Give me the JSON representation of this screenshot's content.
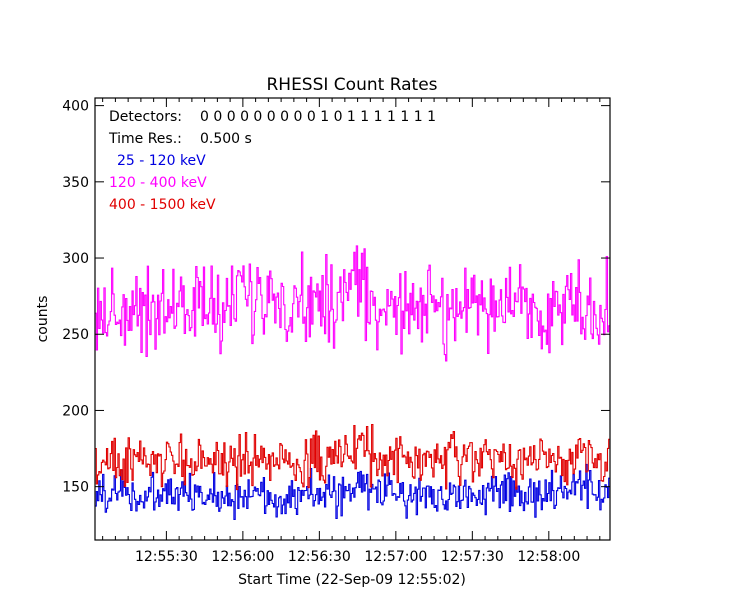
{
  "chart_data": {
    "type": "line",
    "title": "RHESSI Count Rates",
    "xlabel": "Start Time (22-Sep-09 12:55:02)",
    "ylabel": "counts",
    "ylim": [
      115,
      405
    ],
    "xlim_seconds_after_start": [
      0,
      202
    ],
    "yticks": [
      150,
      200,
      250,
      300,
      350,
      400
    ],
    "xtick_labels": [
      "12:55:30",
      "12:56:00",
      "12:56:30",
      "12:57:00",
      "12:57:30",
      "12:58:00"
    ],
    "grid": false,
    "legend_placement": "top-left",
    "annotations": [
      {
        "label": "Detectors:",
        "value": "0 0 0 0 0 0 0 0 0 1 0 1 1 1 1 1 1 1"
      },
      {
        "label": "Time Res.:",
        "value": "0.500 s"
      }
    ],
    "series": [
      {
        "name": "25 - 120 keV",
        "color": "#0000e0",
        "anchors": [
          [
            0,
            144
          ],
          [
            10,
            148
          ],
          [
            20,
            142
          ],
          [
            30,
            146
          ],
          [
            40,
            143
          ],
          [
            50,
            145
          ],
          [
            60,
            144
          ],
          [
            70,
            144
          ],
          [
            80,
            145
          ],
          [
            90,
            144
          ],
          [
            100,
            146
          ],
          [
            105,
            150
          ],
          [
            110,
            147
          ],
          [
            120,
            145
          ],
          [
            130,
            146
          ],
          [
            140,
            144
          ],
          [
            150,
            144
          ],
          [
            160,
            147
          ],
          [
            170,
            144
          ],
          [
            180,
            146
          ],
          [
            190,
            147
          ],
          [
            202,
            147
          ]
        ],
        "amplitude": 12
      },
      {
        "name": "120 - 400 keV",
        "color": "#ff00ff",
        "anchors": [
          [
            0,
            262
          ],
          [
            10,
            266
          ],
          [
            20,
            268
          ],
          [
            30,
            267
          ],
          [
            40,
            270
          ],
          [
            50,
            268
          ],
          [
            60,
            271
          ],
          [
            70,
            273
          ],
          [
            80,
            272
          ],
          [
            90,
            271
          ],
          [
            96,
            276
          ],
          [
            100,
            288
          ],
          [
            104,
            272
          ],
          [
            110,
            270
          ],
          [
            120,
            270
          ],
          [
            130,
            268
          ],
          [
            140,
            265
          ],
          [
            150,
            268
          ],
          [
            160,
            270
          ],
          [
            170,
            268
          ],
          [
            180,
            266
          ],
          [
            190,
            268
          ],
          [
            202,
            265
          ]
        ],
        "amplitude": 24
      },
      {
        "name": "400 - 1500 keV",
        "color": "#e00000",
        "anchors": [
          [
            0,
            165
          ],
          [
            10,
            164
          ],
          [
            20,
            167
          ],
          [
            30,
            166
          ],
          [
            40,
            168
          ],
          [
            50,
            168
          ],
          [
            60,
            166
          ],
          [
            70,
            167
          ],
          [
            80,
            166
          ],
          [
            90,
            168
          ],
          [
            100,
            172
          ],
          [
            104,
            178
          ],
          [
            110,
            168
          ],
          [
            120,
            168
          ],
          [
            130,
            166
          ],
          [
            140,
            167
          ],
          [
            150,
            168
          ],
          [
            160,
            167
          ],
          [
            170,
            166
          ],
          [
            180,
            168
          ],
          [
            190,
            170
          ],
          [
            202,
            170
          ]
        ],
        "amplitude": 14
      }
    ]
  }
}
